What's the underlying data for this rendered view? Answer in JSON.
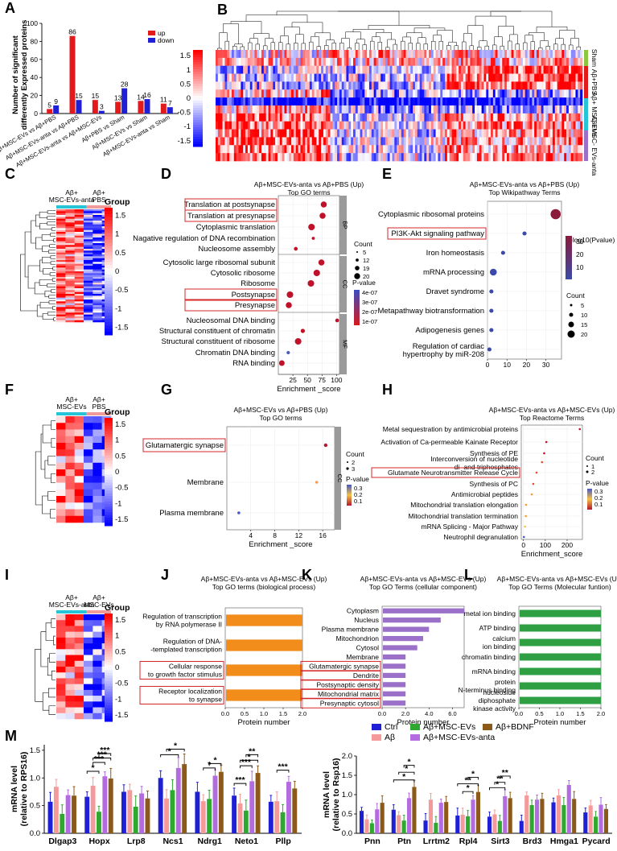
{
  "panels": {
    "A": {
      "label": "A"
    },
    "B": {
      "label": "B"
    },
    "C": {
      "label": "C"
    },
    "D": {
      "label": "D"
    },
    "E": {
      "label": "E"
    },
    "F": {
      "label": "F"
    },
    "G": {
      "label": "G"
    },
    "H": {
      "label": "H"
    },
    "I": {
      "label": "I"
    },
    "J": {
      "label": "J"
    },
    "K": {
      "label": "K"
    },
    "L": {
      "label": "L"
    },
    "M": {
      "label": "M"
    }
  },
  "colors": {
    "up": "#e31a1c",
    "down": "#1f1fd6",
    "orange": "#f28c1b",
    "purple": "#9b70c9",
    "green": "#2ea043",
    "cyan": "#27c4d8",
    "pink": "#f09a9a",
    "lime": "#8dc63f"
  },
  "chart_data": [
    {
      "id": "A",
      "type": "bar",
      "ylabel": "Number of significant differently Expressed proteins",
      "ylim": [
        0,
        100
      ],
      "yticks": [
        0,
        20,
        40,
        60,
        80,
        100
      ],
      "legend": [
        "up",
        "down"
      ],
      "categories": [
        "Aβ+MSC-EVs vs Aβ+PBS",
        "Aβ+MSC-EVs-anta vs Aβ+PBS",
        "Aβ+MSC-EVs-anta vs Aβ+MSC-EVs",
        "Aβ+PBS vs Sham",
        "Aβ+MSC-EVs vs Sham",
        "Aβ+MSC-EVs-anta vs Sham"
      ],
      "series": [
        {
          "name": "up",
          "values": [
            5,
            86,
            15,
            13,
            14,
            11
          ]
        },
        {
          "name": "down",
          "values": [
            9,
            15,
            3,
            28,
            16,
            7
          ]
        }
      ]
    },
    {
      "id": "B",
      "type": "heatmap",
      "scale_ticks": [
        "1.5",
        "1",
        "0.5",
        "0",
        "-0.5",
        "-1",
        "-1.5"
      ],
      "groups": [
        "Sham",
        "Aβ+PBS",
        "Aβ+ MSC-EVs",
        "Aβ+MSC- EVs-anta"
      ]
    },
    {
      "id": "C",
      "type": "heatmap",
      "legend_title": "Group",
      "columns": [
        "Aβ+ MSC-EVs-anta",
        "Aβ+ PBS"
      ],
      "scale_ticks": [
        "1.5",
        "1",
        "0.5",
        "0",
        "-0.5",
        "-1",
        "-1.5"
      ]
    },
    {
      "id": "D",
      "type": "scatter",
      "title": "Aβ+MSC-EVs-anta vs Aβ+PBS (Up)",
      "subtitle": "Top GO terms",
      "xlabel": "Enrichment _score",
      "xlim": [
        0,
        105
      ],
      "xticks": [
        25,
        50,
        75,
        100
      ],
      "facets": [
        "BP",
        "CC",
        "MF"
      ],
      "terms": [
        {
          "term": "Translation at postsynapse",
          "facet": "BP",
          "score": 78,
          "count": 18,
          "pvalue": 1e-07,
          "boxed": true
        },
        {
          "term": "Translation at presynapse",
          "facet": "BP",
          "score": 76,
          "count": 18,
          "pvalue": 1e-07,
          "boxed": true
        },
        {
          "term": "Cytoplasmic translation",
          "facet": "BP",
          "score": 57,
          "count": 20,
          "pvalue": 1e-07,
          "boxed": false
        },
        {
          "term": "Nagative regulation of DNA recombination",
          "facet": "BP",
          "score": 60,
          "count": 5,
          "pvalue": 2e-07,
          "boxed": false
        },
        {
          "term": "Nucleosome assembly",
          "facet": "BP",
          "score": 30,
          "count": 8,
          "pvalue": 1e-07,
          "boxed": false
        },
        {
          "term": "Cytosolic large ribosomal subunit",
          "facet": "CC",
          "score": 74,
          "count": 18,
          "pvalue": 1e-07,
          "boxed": false
        },
        {
          "term": "Cytosolic ribosome",
          "facet": "CC",
          "score": 66,
          "count": 20,
          "pvalue": 1e-07,
          "boxed": false
        },
        {
          "term": "Ribosome",
          "facet": "CC",
          "score": 56,
          "count": 20,
          "pvalue": 1e-07,
          "boxed": false
        },
        {
          "term": "Postsynapse",
          "facet": "CC",
          "score": 20,
          "count": 20,
          "pvalue": 1e-07,
          "boxed": true
        },
        {
          "term": "Presynapse",
          "facet": "CC",
          "score": 18,
          "count": 18,
          "pvalue": 1e-07,
          "boxed": true
        },
        {
          "term": "Nucleosomal DNA binding",
          "facet": "MF",
          "score": 101,
          "count": 8,
          "pvalue": 1e-07,
          "boxed": false
        },
        {
          "term": "Structural constituent of chromatin",
          "facet": "MF",
          "score": 42,
          "count": 10,
          "pvalue": 1e-07,
          "boxed": false
        },
        {
          "term": "Structural constituent of ribosome",
          "facet": "MF",
          "score": 34,
          "count": 20,
          "pvalue": 1e-07,
          "boxed": false
        },
        {
          "term": "Chromatin DNA binding",
          "facet": "MF",
          "score": 17,
          "count": 6,
          "pvalue": 4e-07,
          "boxed": false
        },
        {
          "term": "RNA binding",
          "facet": "MF",
          "score": 6,
          "count": 16,
          "pvalue": 1e-07,
          "boxed": false
        }
      ],
      "size_legend_title": "Count",
      "size_legend": [
        "5",
        "12",
        "19",
        "20"
      ],
      "color_legend_title": "P-value",
      "color_legend": [
        "4e-07",
        "3e-07",
        "2e-07",
        "1e-07"
      ]
    },
    {
      "id": "E",
      "type": "scatter",
      "title": "Aβ+MSC-EVs-anta vs Aβ+PBS (Up)",
      "subtitle": "Top Wikipathway Terms",
      "xlim": [
        0,
        38
      ],
      "xticks": [
        0,
        10,
        20,
        30
      ],
      "terms": [
        {
          "term": "Cytoplasmic ribosomal proteins",
          "score": 35,
          "count": 20,
          "color": 32,
          "boxed": false
        },
        {
          "term": "PI3K-Akt signaling pathway",
          "score": 19,
          "count": 5,
          "color": 5,
          "boxed": true
        },
        {
          "term": "Iron homeostasis",
          "score": 8,
          "count": 5,
          "color": 5,
          "boxed": false
        },
        {
          "term": "mRNA processing",
          "score": 3,
          "count": 12,
          "color": 5,
          "boxed": false
        },
        {
          "term": "Dravet syndrome",
          "score": 2,
          "count": 5,
          "color": 5,
          "boxed": false
        },
        {
          "term": "Metapathway biotransformation",
          "score": 2,
          "count": 5,
          "color": 5,
          "boxed": false
        },
        {
          "term": "Adipogenesis genes",
          "score": 2,
          "count": 5,
          "color": 5,
          "boxed": false
        },
        {
          "term": "Regulation of cardiac hypertrophy by miR-208",
          "score": 1,
          "count": 5,
          "color": 5,
          "boxed": false
        }
      ],
      "color_legend_title": "-log10(Pvalue)",
      "color_legend": [
        "30",
        "20",
        "10"
      ],
      "size_legend_title": "Count",
      "size_legend": [
        "5",
        "10",
        "15",
        "20"
      ]
    },
    {
      "id": "F",
      "type": "heatmap",
      "legend_title": "Group",
      "columns": [
        "Aβ+ MSC-EVs",
        "Aβ+ PBS"
      ],
      "scale_ticks": [
        "1.5",
        "1",
        "0.5",
        "0",
        "-0.5",
        "-1",
        "-1.5"
      ]
    },
    {
      "id": "G",
      "type": "scatter",
      "title": "Aβ+MSC-EVs vs Aβ+PBS (Up)",
      "subtitle": "Top GO terms",
      "xlabel": "Enrichment _score",
      "xlim": [
        0,
        18
      ],
      "xticks": [
        4,
        8,
        12,
        16
      ],
      "terms": [
        {
          "term": "Glutamatergic synapse",
          "score": 16.5,
          "count": 3,
          "pvalue": 0.1,
          "boxed": true
        },
        {
          "term": "Membrane",
          "score": 15,
          "count": 2,
          "pvalue": 0.2,
          "boxed": false
        },
        {
          "term": "Plasma membrane",
          "score": 2,
          "count": 2,
          "pvalue": 0.3,
          "boxed": false
        }
      ],
      "size_legend_title": "Count",
      "size_legend": [
        "2",
        "3"
      ],
      "color_legend_title": "P-value",
      "color_legend": [
        "0.3",
        "0.2",
        "0.1"
      ]
    },
    {
      "id": "H",
      "type": "scatter",
      "title": "Aβ+MSC-EVs-anta vs Aβ+MSC-EVs (Up)",
      "subtitle": "Top Reactome Terms",
      "xlabel": "Enrichment_score",
      "xlim": [
        -10,
        270
      ],
      "xticks": [
        0,
        100,
        200
      ],
      "terms": [
        {
          "term": "Metal sequestration by antimicrobial proteins",
          "score": 258,
          "pvalue": 0.1,
          "boxed": false
        },
        {
          "term": "Activation of Ca-permeable Kainate Receptor",
          "score": 105,
          "pvalue": 0.1,
          "boxed": false
        },
        {
          "term": "Synthesis of PE",
          "score": 95,
          "pvalue": 0.1,
          "boxed": false
        },
        {
          "term": "Interconversion of nucleotide di- and triphosphates",
          "score": 85,
          "pvalue": 0.15,
          "boxed": false
        },
        {
          "term": "Glutamate Neurotransmitter Release Cycle",
          "score": 60,
          "pvalue": 0.15,
          "boxed": true
        },
        {
          "term": "Synthesis of PC",
          "score": 45,
          "pvalue": 0.15,
          "boxed": false
        },
        {
          "term": "Antimicrobial peptides",
          "score": 38,
          "pvalue": 0.2,
          "boxed": false
        },
        {
          "term": "Mitochondrial translation elongation",
          "score": 12,
          "pvalue": 0.2,
          "boxed": false
        },
        {
          "term": "Mitochondrial translation termination",
          "score": 11,
          "pvalue": 0.2,
          "boxed": false
        },
        {
          "term": "mRNA Splicing - Major Pathway",
          "score": 7,
          "pvalue": 0.25,
          "boxed": false
        },
        {
          "term": "Neutrophil degranulation",
          "score": 2,
          "pvalue": 0.3,
          "boxed": false
        }
      ],
      "size_legend_title": "Count",
      "size_legend": [
        "1",
        "2"
      ],
      "color_legend_title": "P-value",
      "color_legend": [
        "0.3",
        "0.2",
        "0.1"
      ]
    },
    {
      "id": "I",
      "type": "heatmap",
      "legend_title": "Group",
      "columns": [
        "Aβ+ MSC-EVs-anta",
        "Aβ+ MSC-EVs"
      ],
      "scale_ticks": [
        "1.5",
        "1",
        "0.5",
        "0",
        "-0.5",
        "-1",
        "-1.5"
      ]
    },
    {
      "id": "J",
      "type": "bar",
      "title": "Aβ+MSC-EVs-anta vs Aβ+MSC-EVs (Up)",
      "subtitle": "Top GO terms (biological process)",
      "xlabel": "Protein number",
      "xlim": [
        0,
        2.0
      ],
      "xticks": [
        "0.0",
        "0.5",
        "1.0",
        "1.5",
        "2.0"
      ],
      "categories": [
        "Regulation of transcription by RNA polymerase II",
        "Regulation of DNA- -templated transcription",
        "Cellular response to growth factor stimulus",
        "Receptor localization to synapse"
      ],
      "values": [
        2,
        2,
        2,
        2
      ],
      "boxed": [
        false,
        false,
        true,
        true
      ]
    },
    {
      "id": "K",
      "type": "bar",
      "title": "Aβ+MSC-EVs-anta vs Aβ+MSC-EVs (Up)",
      "subtitle": "Top GO Terms (cellular component)",
      "xlabel": "Protein number",
      "xlim": [
        0,
        7
      ],
      "xticks": [
        "0.0",
        "2.0",
        "4.0",
        "6.0"
      ],
      "categories": [
        "Cytoplasm",
        "Nucleus",
        "Plasma membrane",
        "Mitochondrion",
        "Cytosol",
        "Membrane",
        "Glutamatergic synapse",
        "Dendrite",
        "Postsynaptic density",
        "Mitochondrial matrix",
        "Presynaptic cytosol"
      ],
      "values": [
        7,
        5,
        4,
        3.5,
        3,
        2,
        2,
        2,
        2,
        2,
        2
      ],
      "boxed": [
        false,
        false,
        false,
        false,
        false,
        false,
        true,
        true,
        true,
        true,
        true
      ]
    },
    {
      "id": "L",
      "type": "bar",
      "title": "Aβ+MSC-EVs-anta vs Aβ+MSC-EVs (Up)",
      "subtitle": "Top GO Terms (Molecular funtion)",
      "xlabel": "Protein number",
      "xlim": [
        0,
        2.0
      ],
      "xticks": [
        "0.0",
        "0.5",
        "1.0",
        "1.5",
        "2.0"
      ],
      "categories": [
        "metal ion binding",
        "ATP binding",
        "calcium ion binding",
        "chromatin binding",
        "mRNA binding",
        "protein N-terminus binding",
        "nucleoside diphosphate kinase activity"
      ],
      "values": [
        2,
        2,
        2,
        2,
        2,
        2,
        2
      ]
    },
    {
      "id": "M-left",
      "type": "bar",
      "ylabel": "mRNA level (relative to RPS16)",
      "ylim": [
        0,
        1.6
      ],
      "yticks": [
        "0.0",
        "0.5",
        "1.0",
        "1.5"
      ],
      "categories": [
        "Dlgap3",
        "Hopx",
        "Lrp8",
        "Ncs1",
        "Ndrg1",
        "Neto1",
        "Pllp"
      ],
      "series": [
        {
          "name": "Ctrl",
          "values": [
            0.57,
            0.66,
            0.75,
            1.0,
            0.75,
            0.68,
            0.57
          ]
        },
        {
          "name": "Aβ",
          "values": [
            0.84,
            0.86,
            0.78,
            0.63,
            0.58,
            0.54,
            0.58
          ]
        },
        {
          "name": "Aβ+MSC-EVs",
          "values": [
            0.35,
            0.39,
            0.48,
            0.78,
            0.62,
            0.41,
            0.38
          ]
        },
        {
          "name": "Aβ+MSC-EVs-anta",
          "values": [
            0.69,
            1.03,
            0.72,
            1.18,
            1.04,
            0.94,
            0.93
          ]
        },
        {
          "name": "Aβ+BDNF",
          "values": [
            0.68,
            0.99,
            0.63,
            1.25,
            1.11,
            1.09,
            0.81
          ]
        }
      ],
      "annotations": [
        "*",
        "***",
        "***",
        "***",
        "*",
        "*",
        "*",
        "*",
        "***",
        "***",
        "*",
        "**",
        "***"
      ]
    },
    {
      "id": "M-right",
      "type": "bar",
      "ylabel": "mRNA level (relative to Rsp16)",
      "ylim": [
        0,
        2.0
      ],
      "yticks": [
        "0.0",
        "0.5",
        "1.0",
        "1.5",
        "2.0"
      ],
      "categories": [
        "Pnn",
        "Ptn",
        "Lrrtm2",
        "Rpl4",
        "Sirt3",
        "Brd3",
        "Hmga1",
        "Pycard"
      ],
      "series": [
        {
          "name": "Ctrl",
          "values": [
            0.58,
            0.61,
            0.33,
            0.46,
            0.43,
            0.32,
            0.8,
            0.54
          ]
        },
        {
          "name": "Aβ",
          "values": [
            0.36,
            0.47,
            0.87,
            0.48,
            0.49,
            0.98,
            0.98,
            0.72
          ]
        },
        {
          "name": "Aβ+MSC-EVs",
          "values": [
            0.26,
            0.33,
            0.27,
            0.44,
            0.32,
            0.73,
            0.73,
            0.43
          ]
        },
        {
          "name": "Aβ+MSC-EVs-anta",
          "values": [
            0.62,
            0.91,
            0.79,
            0.87,
            0.96,
            0.87,
            1.25,
            0.74
          ]
        },
        {
          "name": "Aβ+BDNF",
          "values": [
            0.79,
            1.2,
            0.81,
            1.07,
            0.91,
            0.89,
            0.89,
            0.63
          ]
        }
      ],
      "annotations": [
        "*",
        "*",
        "*",
        "**",
        "*",
        "*",
        "*",
        "**",
        "**"
      ]
    }
  ]
}
